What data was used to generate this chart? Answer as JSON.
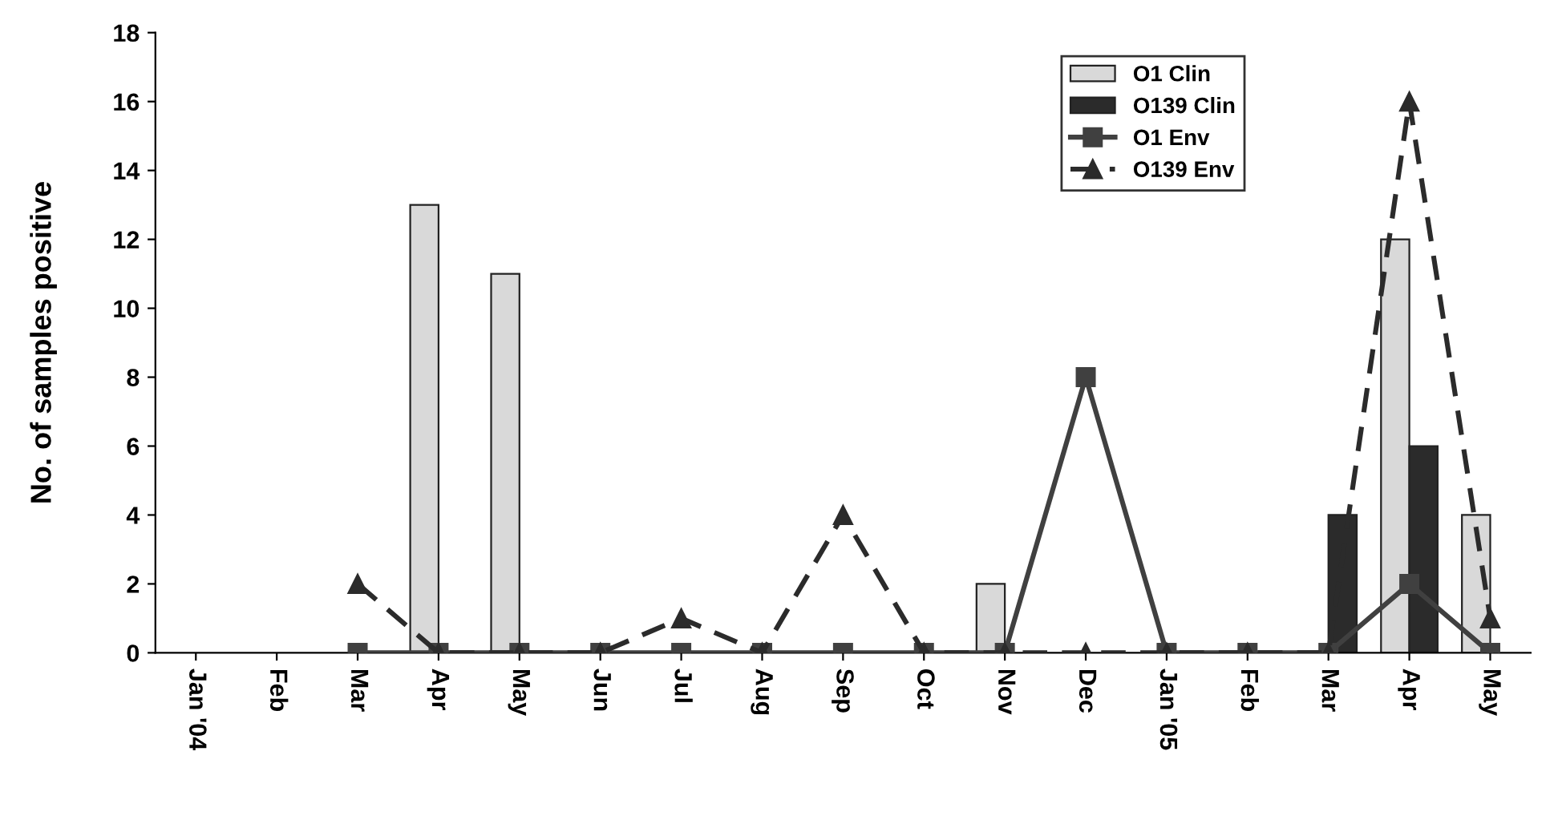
{
  "chart_data": {
    "type": "bar",
    "ylabel": "No. of samples positive",
    "categories": [
      "Jan '04",
      "Feb",
      "Mar",
      "Apr",
      "May",
      "Jun",
      "Jul",
      "Aug",
      "Sep",
      "Oct",
      "Nov",
      "Dec",
      "Jan '05",
      "Feb",
      "Mar",
      "Apr",
      "May"
    ],
    "series": [
      {
        "name": "O1 Clin",
        "color": "#d9d9d9",
        "values": [
          null,
          null,
          null,
          13,
          11,
          null,
          null,
          null,
          null,
          null,
          2,
          null,
          null,
          null,
          null,
          12,
          4
        ]
      },
      {
        "name": "O139 Clin",
        "color": "#2b2b2b",
        "values": [
          null,
          null,
          null,
          null,
          null,
          null,
          null,
          null,
          null,
          null,
          null,
          null,
          null,
          null,
          4,
          6,
          null
        ]
      },
      {
        "name": "O1 Env",
        "type": "line",
        "color": "#404040",
        "marker": "square",
        "line_style": "solid",
        "values": [
          null,
          null,
          0,
          0,
          0,
          0,
          0,
          0,
          0,
          0,
          0,
          8,
          0,
          0,
          0,
          2,
          0
        ]
      },
      {
        "name": "O139 Env",
        "type": "line",
        "color": "#2b2b2b",
        "marker": "triangle",
        "line_style": "dashed",
        "values": [
          null,
          null,
          2,
          0,
          0,
          0,
          1,
          0,
          4,
          0,
          0,
          0,
          0,
          0,
          0,
          16,
          1
        ]
      }
    ],
    "ylim": [
      0,
      18
    ],
    "yticks": [
      0,
      2,
      4,
      6,
      8,
      10,
      12,
      14,
      16,
      18
    ],
    "grid": false,
    "legend": "top right"
  }
}
